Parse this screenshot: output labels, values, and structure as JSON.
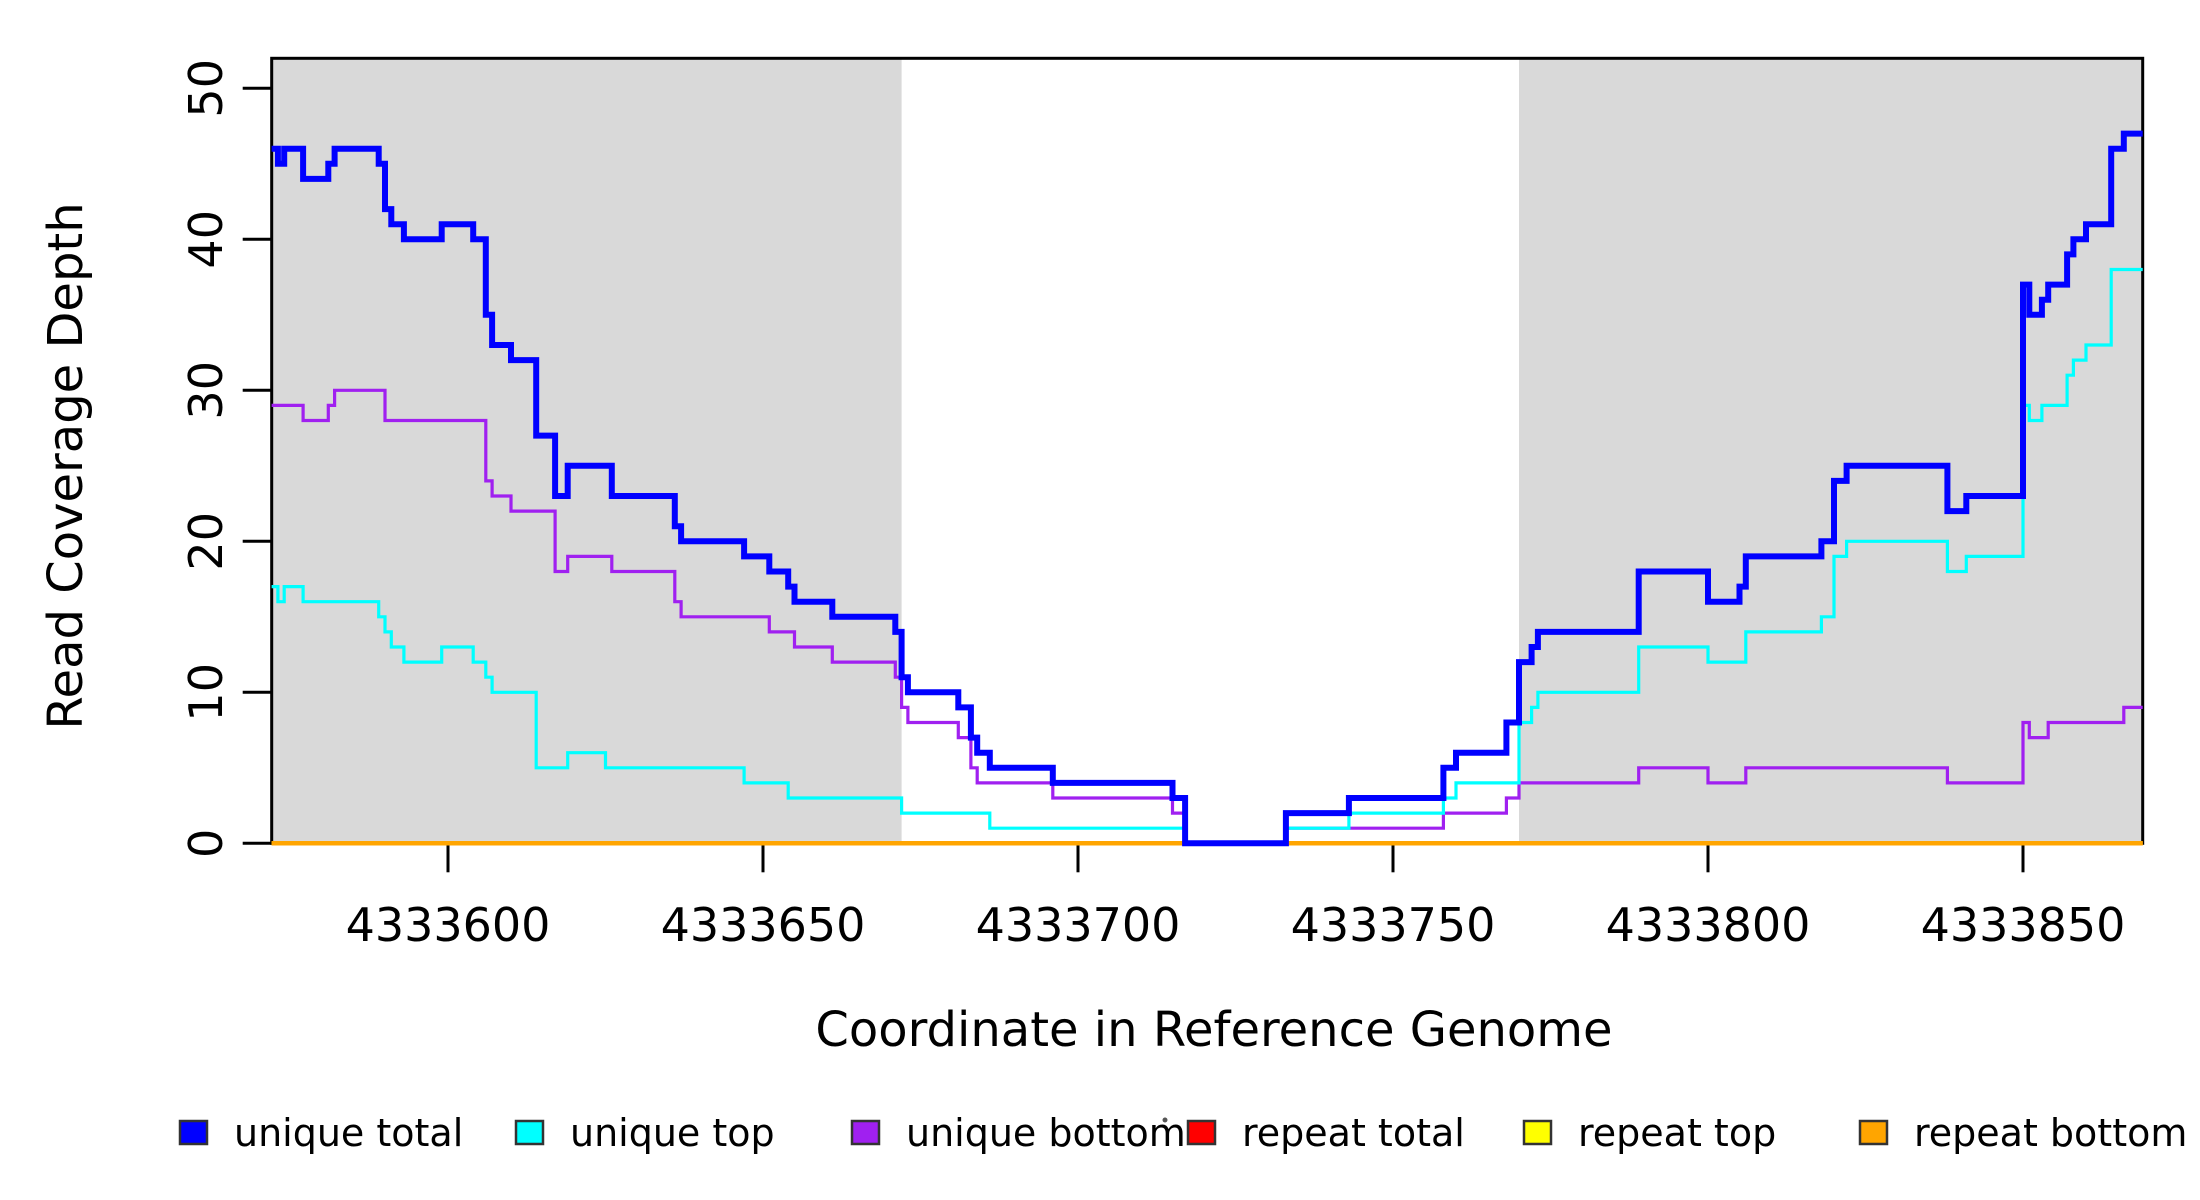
{
  "figure": {
    "background_color": "#ffffff",
    "plot_background_color": "#ffffff",
    "shaded_region_color": "#d9d9d9",
    "frame_color": "#000000"
  },
  "axes": {
    "x_label": "Coordinate in Reference Genome",
    "y_label": "Read Coverage Depth",
    "x_ticks": [
      4333600,
      4333650,
      4333700,
      4333750,
      4333800,
      4333850
    ],
    "y_ticks": [
      0,
      10,
      20,
      30,
      40,
      50
    ],
    "x_range": [
      4333572,
      4333869
    ],
    "y_range": [
      0,
      52
    ]
  },
  "legend": [
    {
      "label": "unique total",
      "color": "#0000ff"
    },
    {
      "label": "unique top",
      "color": "#00ffff"
    },
    {
      "label": "unique bottom",
      "color": "#a020f0"
    },
    {
      "label": "repeat total",
      "color": "#ff0000"
    },
    {
      "label": "repeat top",
      "color": "#ffff00"
    },
    {
      "label": "repeat bottom",
      "color": "#ffa500"
    }
  ],
  "chart_data": {
    "type": "line",
    "step": true,
    "title": "",
    "xlabel": "Coordinate in Reference Genome",
    "ylabel": "Read Coverage Depth",
    "x_ticks": [
      4333600,
      4333650,
      4333700,
      4333750,
      4333800,
      4333850
    ],
    "y_ticks": [
      0,
      10,
      20,
      30,
      40,
      50
    ],
    "xlim": [
      4333572,
      4333869
    ],
    "ylim": [
      0,
      52
    ],
    "grid": false,
    "legend_position": "bottom",
    "shaded_regions": [
      {
        "from": 4333572,
        "to": 4333672,
        "color": "#d9d9d9"
      },
      {
        "from": 4333770,
        "to": 4333869,
        "color": "#d9d9d9"
      }
    ],
    "series": [
      {
        "name": "repeat total",
        "color": "#ff0000",
        "width": 4,
        "points": [
          [
            4333572,
            0
          ],
          [
            4333869,
            0
          ]
        ]
      },
      {
        "name": "repeat top",
        "color": "#ffff00",
        "width": 4,
        "points": [
          [
            4333572,
            0
          ],
          [
            4333869,
            0
          ]
        ]
      },
      {
        "name": "repeat bottom",
        "color": "#ffa500",
        "width": 4.5,
        "points": [
          [
            4333572,
            0
          ],
          [
            4333869,
            0
          ]
        ]
      },
      {
        "name": "unique bottom",
        "color": "#a020f0",
        "width": 3.2,
        "points": [
          [
            4333572,
            29
          ],
          [
            4333577,
            28
          ],
          [
            4333581,
            29
          ],
          [
            4333582,
            30
          ],
          [
            4333590,
            28
          ],
          [
            4333606,
            24
          ],
          [
            4333607,
            23
          ],
          [
            4333610,
            22
          ],
          [
            4333617,
            18
          ],
          [
            4333619,
            19
          ],
          [
            4333626,
            18
          ],
          [
            4333636,
            16
          ],
          [
            4333637,
            15
          ],
          [
            4333651,
            14
          ],
          [
            4333655,
            13
          ],
          [
            4333661,
            12
          ],
          [
            4333671,
            11
          ],
          [
            4333672,
            9
          ],
          [
            4333673,
            8
          ],
          [
            4333681,
            7
          ],
          [
            4333683,
            5
          ],
          [
            4333684,
            4
          ],
          [
            4333696,
            3
          ],
          [
            4333715,
            2
          ],
          [
            4333717,
            0
          ],
          [
            4333733,
            1
          ],
          [
            4333758,
            2
          ],
          [
            4333768,
            3
          ],
          [
            4333770,
            4
          ],
          [
            4333789,
            5
          ],
          [
            4333800,
            4
          ],
          [
            4333806,
            5
          ],
          [
            4333838,
            4
          ],
          [
            4333850,
            8
          ],
          [
            4333851,
            7
          ],
          [
            4333854,
            8
          ],
          [
            4333866,
            9
          ],
          [
            4333869,
            9
          ]
        ]
      },
      {
        "name": "unique top",
        "color": "#00ffff",
        "width": 3.2,
        "points": [
          [
            4333572,
            17
          ],
          [
            4333573,
            16
          ],
          [
            4333574,
            17
          ],
          [
            4333577,
            16
          ],
          [
            4333589,
            15
          ],
          [
            4333590,
            14
          ],
          [
            4333591,
            13
          ],
          [
            4333593,
            12
          ],
          [
            4333599,
            13
          ],
          [
            4333604,
            12
          ],
          [
            4333606,
            11
          ],
          [
            4333607,
            10
          ],
          [
            4333614,
            5
          ],
          [
            4333619,
            6
          ],
          [
            4333625,
            5
          ],
          [
            4333647,
            4
          ],
          [
            4333654,
            3
          ],
          [
            4333672,
            2
          ],
          [
            4333686,
            1
          ],
          [
            4333717,
            0
          ],
          [
            4333733,
            1
          ],
          [
            4333743,
            2
          ],
          [
            4333758,
            3
          ],
          [
            4333760,
            4
          ],
          [
            4333770,
            8
          ],
          [
            4333772,
            9
          ],
          [
            4333773,
            10
          ],
          [
            4333789,
            13
          ],
          [
            4333800,
            12
          ],
          [
            4333806,
            14
          ],
          [
            4333818,
            15
          ],
          [
            4333820,
            19
          ],
          [
            4333822,
            20
          ],
          [
            4333838,
            18
          ],
          [
            4333841,
            19
          ],
          [
            4333850,
            29
          ],
          [
            4333851,
            28
          ],
          [
            4333853,
            29
          ],
          [
            4333857,
            31
          ],
          [
            4333858,
            32
          ],
          [
            4333860,
            33
          ],
          [
            4333864,
            38
          ],
          [
            4333869,
            38
          ]
        ]
      },
      {
        "name": "unique total",
        "color": "#0000ff",
        "width": 6,
        "points": [
          [
            4333572,
            46
          ],
          [
            4333573,
            45
          ],
          [
            4333574,
            46
          ],
          [
            4333577,
            44
          ],
          [
            4333581,
            45
          ],
          [
            4333582,
            46
          ],
          [
            4333589,
            45
          ],
          [
            4333590,
            42
          ],
          [
            4333591,
            41
          ],
          [
            4333593,
            40
          ],
          [
            4333599,
            41
          ],
          [
            4333604,
            40
          ],
          [
            4333606,
            35
          ],
          [
            4333607,
            33
          ],
          [
            4333610,
            32
          ],
          [
            4333614,
            27
          ],
          [
            4333617,
            23
          ],
          [
            4333619,
            25
          ],
          [
            4333626,
            23
          ],
          [
            4333636,
            21
          ],
          [
            4333637,
            20
          ],
          [
            4333647,
            19
          ],
          [
            4333651,
            18
          ],
          [
            4333654,
            17
          ],
          [
            4333655,
            16
          ],
          [
            4333661,
            15
          ],
          [
            4333671,
            14
          ],
          [
            4333672,
            11
          ],
          [
            4333673,
            10
          ],
          [
            4333681,
            9
          ],
          [
            4333683,
            7
          ],
          [
            4333684,
            6
          ],
          [
            4333686,
            5
          ],
          [
            4333696,
            4
          ],
          [
            4333715,
            3
          ],
          [
            4333717,
            0
          ],
          [
            4333733,
            2
          ],
          [
            4333743,
            3
          ],
          [
            4333758,
            5
          ],
          [
            4333760,
            6
          ],
          [
            4333768,
            8
          ],
          [
            4333770,
            12
          ],
          [
            4333772,
            13
          ],
          [
            4333773,
            14
          ],
          [
            4333789,
            18
          ],
          [
            4333800,
            16
          ],
          [
            4333805,
            17
          ],
          [
            4333806,
            19
          ],
          [
            4333818,
            20
          ],
          [
            4333820,
            24
          ],
          [
            4333822,
            25
          ],
          [
            4333838,
            22
          ],
          [
            4333841,
            23
          ],
          [
            4333850,
            37
          ],
          [
            4333851,
            35
          ],
          [
            4333853,
            36
          ],
          [
            4333854,
            37
          ],
          [
            4333857,
            39
          ],
          [
            4333858,
            40
          ],
          [
            4333860,
            41
          ],
          [
            4333864,
            46
          ],
          [
            4333866,
            47
          ],
          [
            4333869,
            47
          ]
        ]
      }
    ]
  }
}
